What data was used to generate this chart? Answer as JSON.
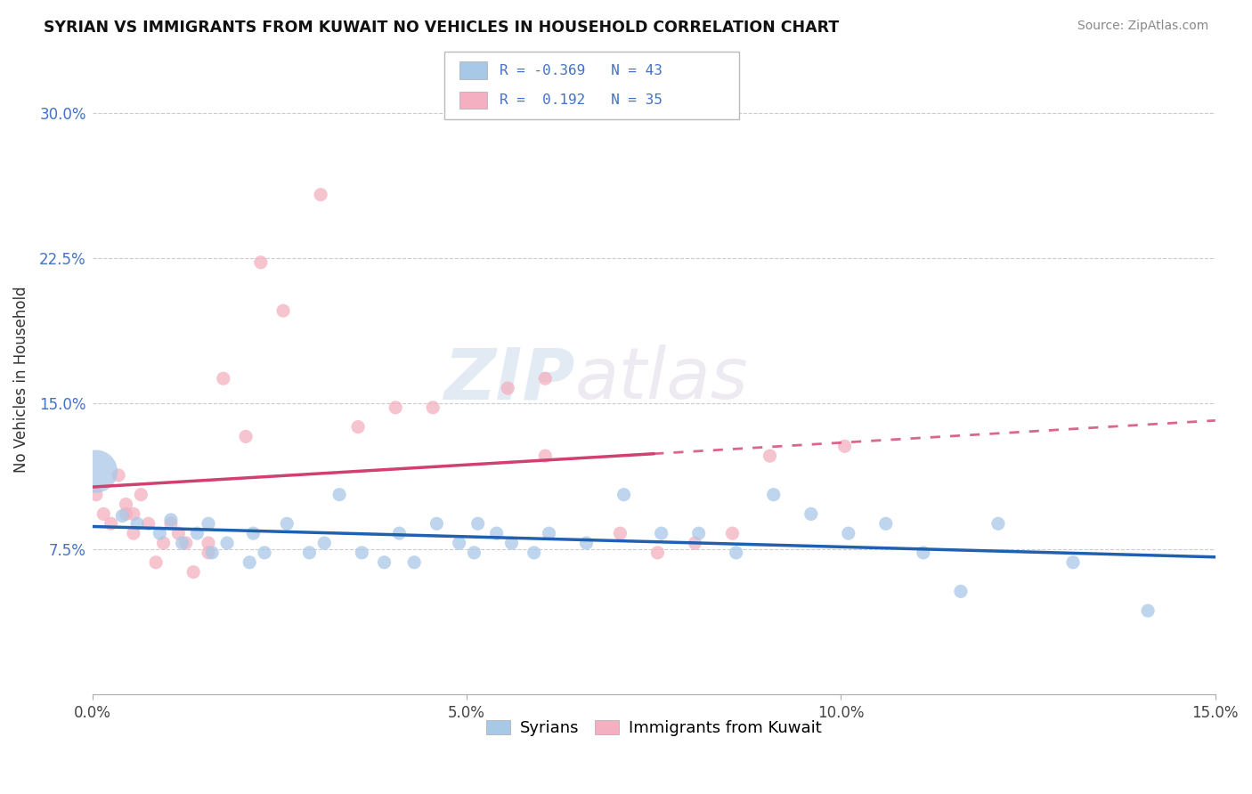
{
  "title": "SYRIAN VS IMMIGRANTS FROM KUWAIT NO VEHICLES IN HOUSEHOLD CORRELATION CHART",
  "source": "Source: ZipAtlas.com",
  "xlabel_tick_vals": [
    0.0,
    5.0,
    10.0,
    15.0
  ],
  "ylabel_tick_vals": [
    7.5,
    15.0,
    22.5,
    30.0
  ],
  "xmin": 0.0,
  "xmax": 15.0,
  "ymin": 0.0,
  "ymax": 32.5,
  "blue_color": "#a8c8e8",
  "pink_color": "#f4b0c0",
  "blue_line_color": "#2060b0",
  "pink_line_color": "#d04070",
  "watermark1": "ZIP",
  "watermark2": "atlas",
  "ylabel": "No Vehicles in Household",
  "legend_label_blue": "Syrians",
  "legend_label_pink": "Immigrants from Kuwait",
  "syrians_x": [
    0.05,
    0.4,
    0.6,
    0.9,
    1.05,
    1.2,
    1.4,
    1.55,
    1.6,
    1.8,
    2.1,
    2.15,
    2.3,
    2.6,
    2.9,
    3.1,
    3.3,
    3.6,
    3.9,
    4.1,
    4.3,
    4.6,
    4.9,
    5.1,
    5.15,
    5.4,
    5.6,
    5.9,
    6.1,
    6.6,
    7.1,
    7.6,
    8.1,
    8.6,
    9.1,
    9.6,
    10.1,
    10.6,
    11.1,
    11.6,
    12.1,
    13.1,
    14.1
  ],
  "syrians_y": [
    11.5,
    9.2,
    8.8,
    8.3,
    9.0,
    7.8,
    8.3,
    8.8,
    7.3,
    7.8,
    6.8,
    8.3,
    7.3,
    8.8,
    7.3,
    7.8,
    10.3,
    7.3,
    6.8,
    8.3,
    6.8,
    8.8,
    7.8,
    7.3,
    8.8,
    8.3,
    7.8,
    7.3,
    8.3,
    7.8,
    10.3,
    8.3,
    8.3,
    7.3,
    10.3,
    9.3,
    8.3,
    8.8,
    7.3,
    5.3,
    8.8,
    6.8,
    4.3
  ],
  "syrians_size": [
    1200,
    120,
    120,
    120,
    120,
    120,
    120,
    120,
    120,
    120,
    120,
    120,
    120,
    120,
    120,
    120,
    120,
    120,
    120,
    120,
    120,
    120,
    120,
    120,
    120,
    120,
    120,
    120,
    120,
    120,
    120,
    120,
    120,
    120,
    120,
    120,
    120,
    120,
    120,
    120,
    120,
    120,
    120
  ],
  "kuwait_x": [
    0.05,
    0.15,
    0.25,
    0.35,
    0.45,
    0.45,
    0.55,
    0.55,
    0.65,
    0.75,
    0.85,
    0.95,
    1.05,
    1.15,
    1.25,
    1.35,
    1.55,
    1.55,
    1.75,
    2.05,
    2.25,
    2.55,
    3.05,
    3.55,
    4.05,
    4.55,
    5.55,
    6.05,
    6.05,
    7.05,
    7.55,
    8.05,
    8.55,
    9.05,
    10.05
  ],
  "kuwait_y": [
    10.3,
    9.3,
    8.8,
    11.3,
    9.8,
    9.3,
    9.3,
    8.3,
    10.3,
    8.8,
    6.8,
    7.8,
    8.8,
    8.3,
    7.8,
    6.3,
    7.3,
    7.8,
    16.3,
    13.3,
    22.3,
    19.8,
    25.8,
    13.8,
    14.8,
    14.8,
    15.8,
    16.3,
    12.3,
    8.3,
    7.3,
    7.8,
    8.3,
    12.3,
    12.8
  ],
  "kuwait_size": 120
}
